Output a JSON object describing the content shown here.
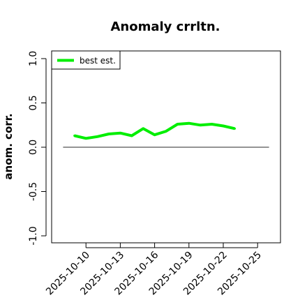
{
  "chart_data": {
    "type": "line",
    "title": "Anomaly crrltn.",
    "xlabel": "",
    "ylabel": "anom. corr.",
    "x": [
      "2025-10-09",
      "2025-10-10",
      "2025-10-11",
      "2025-10-12",
      "2025-10-13",
      "2025-10-14",
      "2025-10-15",
      "2025-10-16",
      "2025-10-17",
      "2025-10-18",
      "2025-10-19",
      "2025-10-20",
      "2025-10-21",
      "2025-10-22",
      "2025-10-23"
    ],
    "series": [
      {
        "name": "best est.",
        "color": "#00ee00",
        "values": [
          0.13,
          0.1,
          0.12,
          0.15,
          0.16,
          0.13,
          0.21,
          0.14,
          0.18,
          0.26,
          0.27,
          0.25,
          0.26,
          0.24,
          0.21
        ]
      }
    ],
    "reference_line": {
      "y": 0,
      "x_from": "2025-10-08",
      "x_to": "2025-10-26",
      "color": "#555555"
    },
    "xlim": [
      "2025-10-07",
      "2025-10-27"
    ],
    "ylim": [
      -1.0,
      1.0
    ],
    "x_tick_labels": [
      "2025-10-10",
      "2025-10-13",
      "2025-10-16",
      "2025-10-19",
      "2025-10-22",
      "2025-10-25"
    ],
    "y_tick_labels": [
      "-1.0",
      "-0.5",
      "0.0",
      "0.5",
      "1.0"
    ],
    "grid": false,
    "legend_position": "top-left"
  }
}
